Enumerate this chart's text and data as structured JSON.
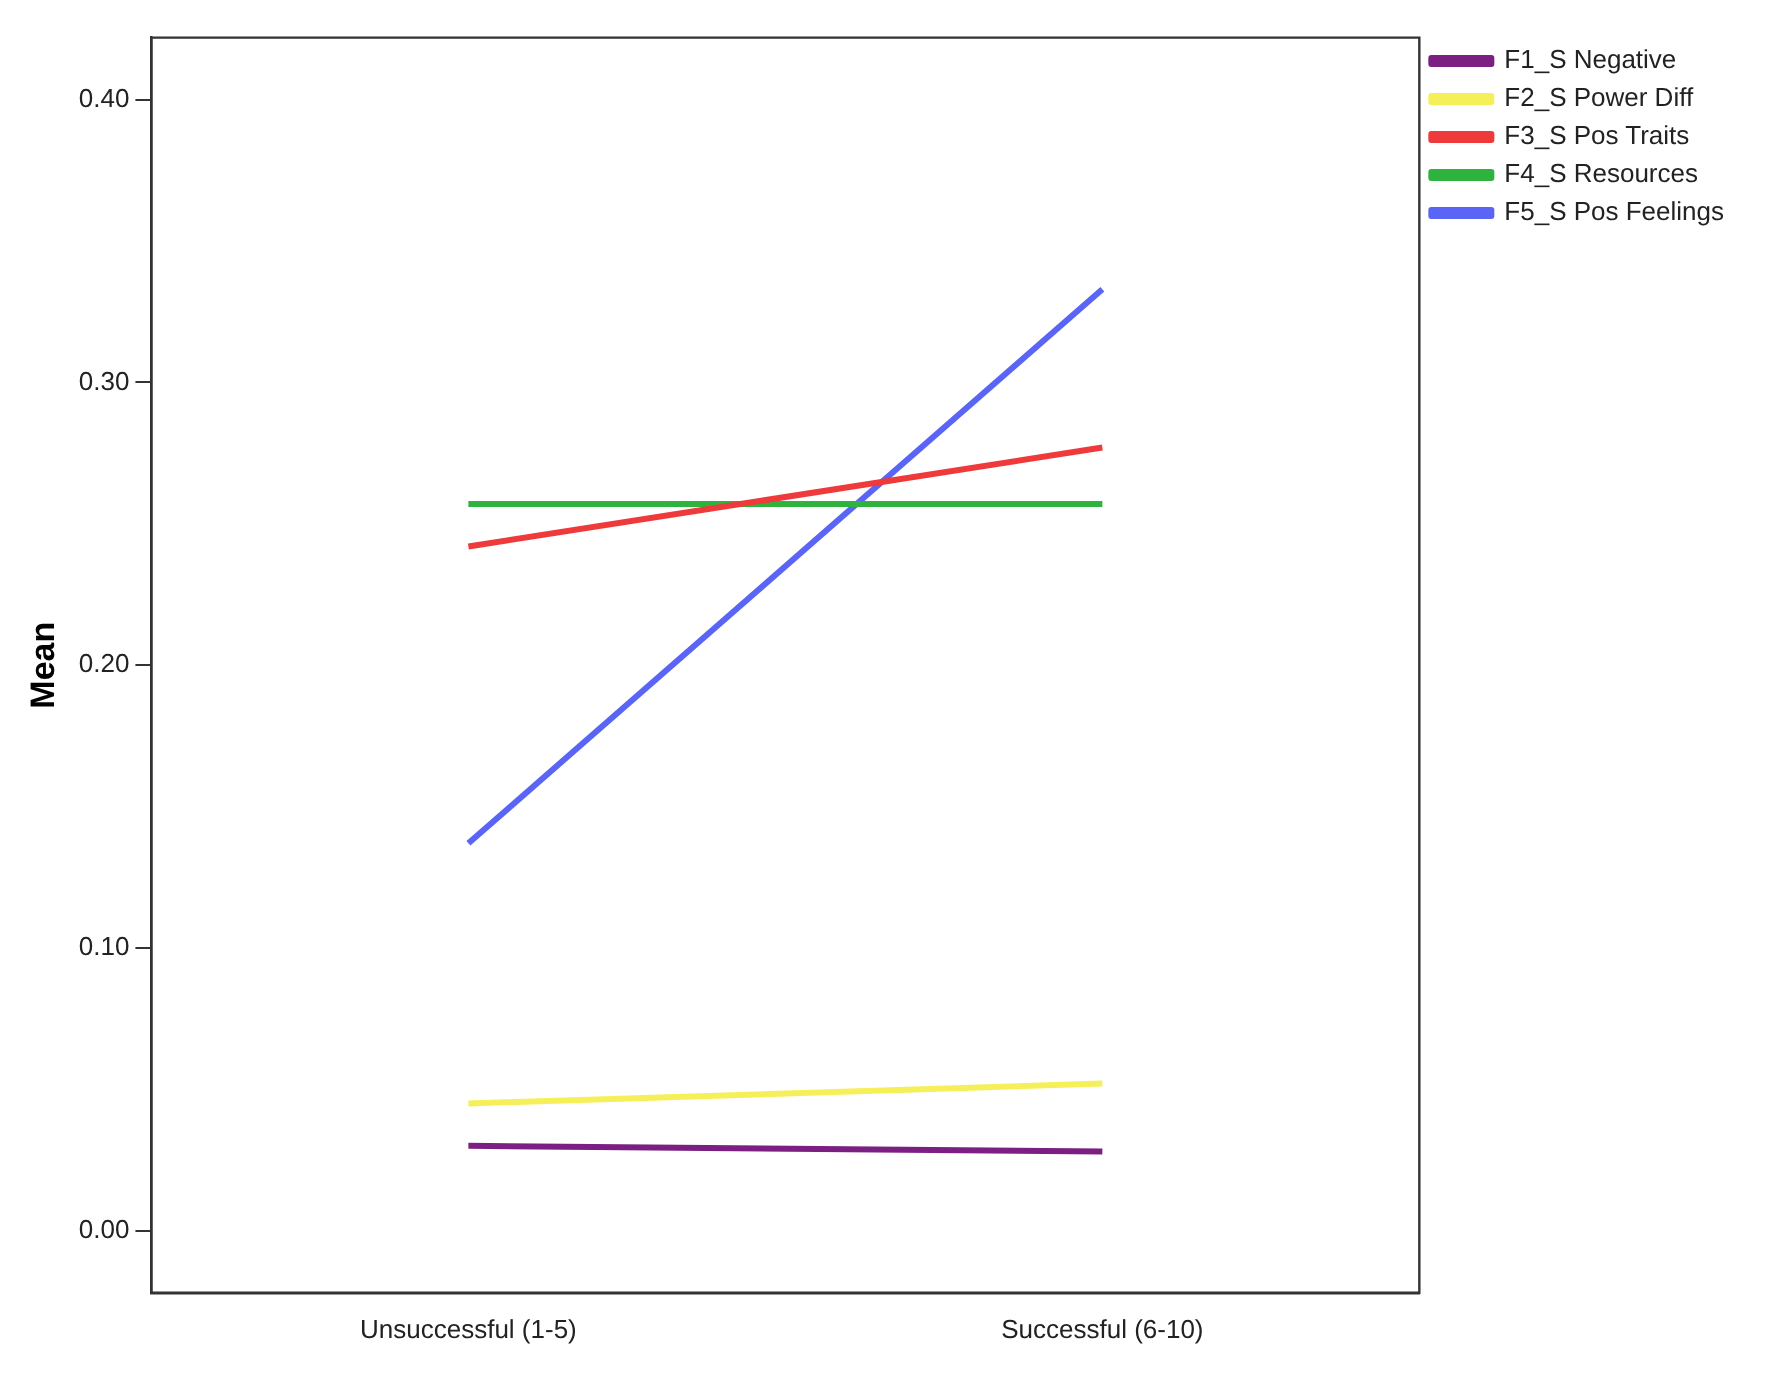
{
  "chart_data": {
    "type": "line",
    "ylabel": "Mean",
    "categories": [
      "Unsuccessful (1-5)",
      "Successful (6-10)"
    ],
    "series": [
      {
        "name": "F1_S Negative",
        "color": "#7b1f82",
        "values": [
          0.03,
          0.028
        ]
      },
      {
        "name": "F2_S Power Diff",
        "color": "#f5f05a",
        "values": [
          0.045,
          0.052
        ]
      },
      {
        "name": "F3_S Pos Traits",
        "color": "#ee3a3a",
        "values": [
          0.242,
          0.277
        ]
      },
      {
        "name": "F4_S Resources",
        "color": "#2eb33e",
        "values": [
          0.257,
          0.257
        ]
      },
      {
        "name": "F5_S Pos Feelings",
        "color": "#5a64f5",
        "values": [
          0.137,
          0.333
        ]
      }
    ],
    "ylim": [
      -0.022,
      0.422
    ],
    "yticks": [
      {
        "value": 0,
        "label": "0.00"
      },
      {
        "value": 0.1,
        "label": "0.10"
      },
      {
        "value": 0.2,
        "label": "0.20"
      },
      {
        "value": 0.3,
        "label": "0.30"
      },
      {
        "value": 0.4,
        "label": "0.40"
      }
    ],
    "grid": false,
    "legend": "top right",
    "marker": "none",
    "line_style": "solid"
  }
}
